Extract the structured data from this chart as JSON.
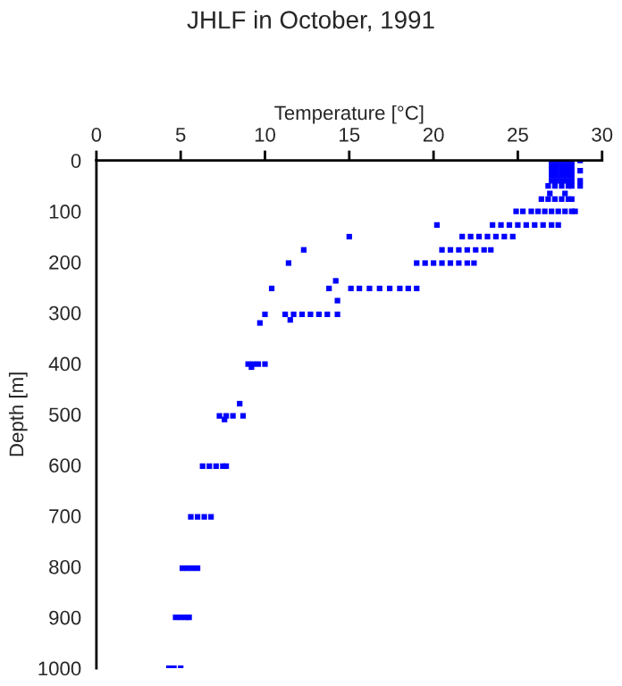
{
  "chart_data": {
    "type": "scatter",
    "title": "JHLF in October, 1991",
    "xlabel": "Temperature [°C]",
    "ylabel": "Depth [m]",
    "series": [
      {
        "color": "#0000ff",
        "x": [
          27.0,
          27.3,
          27.6,
          27.9,
          28.2,
          27.0,
          27.3,
          27.6,
          27.9,
          28.2,
          27.0,
          27.3,
          27.6,
          27.9,
          28.2,
          27.0,
          27.3,
          27.6,
          27.9,
          28.2,
          27.0,
          27.3,
          27.6,
          27.9,
          28.2,
          28.7,
          28.7,
          28.7,
          26.8,
          27.2,
          27.6,
          28.0,
          28.2,
          28.7,
          26.9,
          27.8,
          26.4,
          26.8,
          27.2,
          27.6,
          28.0,
          28.2,
          24.9,
          25.3,
          25.8,
          26.2,
          26.6,
          27.0,
          27.4,
          27.8,
          28.2,
          28.4,
          20.2,
          23.5,
          24.0,
          24.5,
          25.0,
          25.5,
          26.0,
          26.5,
          27.0,
          27.4,
          15.0,
          21.7,
          22.2,
          22.7,
          23.2,
          23.7,
          24.2,
          24.7,
          12.3,
          20.5,
          21.0,
          21.5,
          22.0,
          22.5,
          23.0,
          23.4,
          11.4,
          19.0,
          19.5,
          20.0,
          20.5,
          21.0,
          21.5,
          22.0,
          22.4,
          14.2,
          10.4,
          13.8,
          15.1,
          15.6,
          16.2,
          16.8,
          17.4,
          18.0,
          18.5,
          19.0,
          14.3,
          10.0,
          11.2,
          11.7,
          12.2,
          12.7,
          13.2,
          13.7,
          14.3,
          11.5,
          9.7,
          9.0,
          9.3,
          9.6,
          10.0,
          9.2,
          8.5,
          7.3,
          7.7,
          8.1,
          8.7,
          7.6,
          6.3,
          6.7,
          7.1,
          7.5,
          7.7,
          5.6,
          6.0,
          6.4,
          6.8,
          5.1,
          5.4,
          5.7,
          6.0,
          4.7,
          5.0,
          5.3,
          5.5,
          4.3,
          4.6,
          5.0
        ],
        "values": [
          0,
          0,
          0,
          0,
          0,
          10,
          10,
          10,
          10,
          10,
          20,
          20,
          20,
          20,
          20,
          30,
          30,
          30,
          30,
          30,
          40,
          40,
          40,
          40,
          40,
          0,
          20,
          40,
          50,
          50,
          50,
          50,
          50,
          50,
          65,
          65,
          76,
          76,
          76,
          76,
          76,
          76,
          100,
          100,
          100,
          100,
          100,
          100,
          100,
          100,
          100,
          100,
          127,
          127,
          127,
          127,
          127,
          127,
          127,
          127,
          127,
          127,
          150,
          150,
          150,
          150,
          150,
          150,
          150,
          150,
          176,
          176,
          176,
          176,
          176,
          176,
          176,
          176,
          202,
          202,
          202,
          202,
          202,
          202,
          202,
          202,
          202,
          237,
          252,
          252,
          252,
          252,
          252,
          252,
          252,
          252,
          252,
          252,
          276,
          303,
          303,
          303,
          303,
          303,
          303,
          303,
          303,
          314,
          320,
          401,
          401,
          401,
          401,
          407,
          479,
          503,
          503,
          503,
          503,
          510,
          602,
          602,
          602,
          602,
          602,
          702,
          702,
          702,
          702,
          803,
          803,
          803,
          803,
          900,
          900,
          900,
          900,
          1000,
          1000,
          1000
        ]
      }
    ],
    "xlim": [
      0,
      30
    ],
    "xticks": [
      0,
      5,
      10,
      15,
      20,
      25,
      30
    ],
    "ylim": [
      1000,
      0
    ],
    "yticks": [
      0,
      100,
      200,
      300,
      400,
      500,
      600,
      700,
      800,
      900,
      1000
    ],
    "marker": "square",
    "grid": false
  }
}
